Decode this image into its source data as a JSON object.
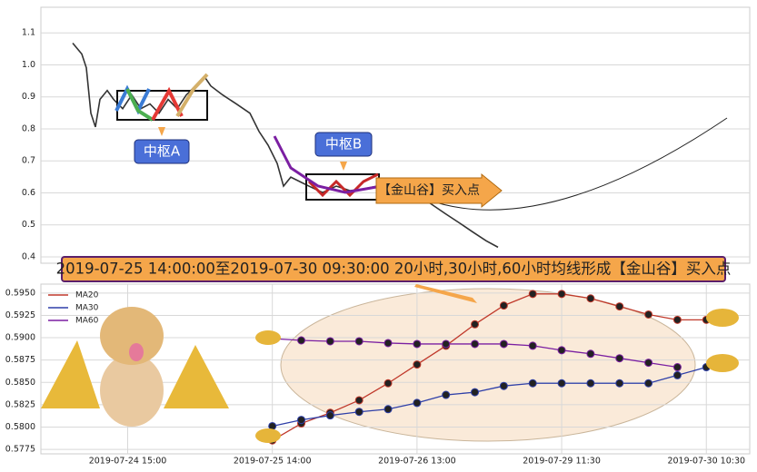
{
  "chart_data": [
    {
      "type": "line",
      "x": [
        3.5,
        4.5,
        5,
        5.5,
        6,
        6.5,
        7.3,
        8,
        9,
        10,
        11,
        12,
        13,
        14,
        15,
        16,
        17,
        18,
        18.7,
        20,
        21.5,
        23,
        24,
        25,
        26,
        26.7,
        27.5,
        28.5,
        29.5,
        31,
        32.5,
        34,
        35.5,
        37,
        38.5,
        40,
        41.5,
        43,
        44.5,
        46,
        47.5,
        49,
        50.3
      ],
      "values": [
        1.068,
        1.034,
        0.991,
        0.849,
        0.806,
        0.892,
        0.92,
        0.892,
        0.863,
        0.906,
        0.863,
        0.878,
        0.849,
        0.892,
        0.863,
        0.906,
        0.934,
        0.963,
        0.934,
        0.906,
        0.878,
        0.849,
        0.792,
        0.749,
        0.692,
        0.621,
        0.649,
        0.635,
        0.621,
        0.601,
        0.621,
        0.607,
        0.612,
        0.621,
        0.607,
        0.607,
        0.592,
        0.564,
        0.535,
        0.507,
        0.478,
        0.45,
        0.43
      ],
      "color": "#333333",
      "xlim": [
        0,
        78
      ],
      "ylim": [
        0.38,
        1.18
      ],
      "yticks": [
        0.4,
        0.5,
        0.6,
        0.7,
        0.8,
        0.9,
        {
          "value": 1,
          "label": "1.0"
        },
        1.1
      ],
      "grid": true,
      "annotations": [
        "中枢A",
        "中枢B",
        "【金山谷】买入点"
      ],
      "banner": "2019-07-25 14:00:00至2019-07-30 09:30:00 20小时,30小时,60小时均线形成【金山谷】买入点"
    },
    {
      "type": "line",
      "x": [
        0,
        1,
        2,
        3,
        4,
        5,
        6,
        7,
        8,
        9,
        10,
        11,
        12,
        13,
        14,
        15
      ],
      "series": [
        {
          "name": "MA20",
          "color": "#c0392b",
          "values": [
            0.5785,
            0.5804,
            0.5816,
            0.583,
            0.5849,
            0.587,
            0.5891,
            0.5915,
            0.5936,
            0.5949,
            0.5949,
            0.5944,
            0.5935,
            0.5926,
            0.592,
            0.592
          ]
        },
        {
          "name": "MA30",
          "color": "#2e3fa8",
          "values": [
            0.5801,
            0.5808,
            0.5813,
            0.5817,
            0.582,
            0.5827,
            0.5836,
            0.5839,
            0.5846,
            0.5849,
            0.5849,
            0.5849,
            0.5849,
            0.5849,
            0.5858,
            0.5867
          ]
        },
        {
          "name": "MA60",
          "color": "#7b1fa2",
          "values": [
            0.5899,
            0.5897,
            0.5896,
            0.5896,
            0.5894,
            0.5893,
            0.5893,
            0.5893,
            0.5893,
            0.5891,
            0.5886,
            0.5882,
            0.5877,
            0.5872,
            0.5867,
            null
          ]
        }
      ],
      "xlim": [
        -8,
        16.5
      ],
      "ylim": [
        0.577,
        0.596
      ],
      "xticks": [
        {
          "value": -5,
          "label": "2019-07-24 15:00"
        },
        {
          "value": 0,
          "label": "2019-07-25 14:00"
        },
        {
          "value": 5,
          "label": "2019-07-26 13:00"
        },
        {
          "value": 10,
          "label": "2019-07-29 11:30"
        },
        {
          "value": 15,
          "label": "2019-07-30 10:30"
        }
      ],
      "yticks": [
        0.5775,
        {
          "value": 0.58,
          "label": "0.5800"
        },
        0.5825,
        {
          "value": 0.585,
          "label": "0.5850"
        },
        0.5875,
        {
          "value": 0.59,
          "label": "0.5900"
        },
        0.5925,
        {
          "value": 0.595,
          "label": "0.5950"
        }
      ],
      "grid": true,
      "legend": "upper left"
    }
  ]
}
